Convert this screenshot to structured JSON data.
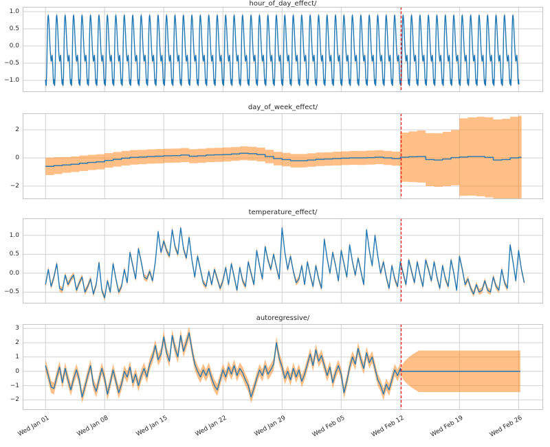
{
  "figure": {
    "background": "#ffffff"
  },
  "colors": {
    "mean_line": "#1f77b4",
    "uncertainty_band": "#ff7f0e",
    "band_opacity": 0.5,
    "forecast_vline": "#ff0000",
    "grid": "#d0d0d0",
    "spine": "#c4c4c4",
    "text": "#262626"
  },
  "x_axis": {
    "domain_days": [
      -2.7,
      58.9
    ],
    "tick_days": [
      0,
      7,
      14,
      21,
      28,
      35,
      42,
      49,
      56
    ],
    "tick_labels": [
      "Wed Jan 01",
      "Wed Jan 08",
      "Wed Jan 15",
      "Wed Jan 22",
      "Wed Jan 29",
      "Wed Feb 05",
      "Wed Feb 12",
      "Wed Feb 19",
      "Wed Feb 26"
    ],
    "forecast_start_day": 42.1
  },
  "chart_data": [
    {
      "type": "line",
      "title": "hour_of_day_effect/",
      "ylim": [
        -1.34,
        1.14
      ],
      "yticks": [
        1.0,
        0.5,
        0.0,
        -0.5,
        -1.0
      ],
      "ytick_labels": [
        "1.0",
        "0.5",
        "0.0",
        "−0.5",
        "−1.0"
      ],
      "series": {
        "kind": "seasonal_daily",
        "points_per_day": 24,
        "start_day": 0,
        "end_day": 56.08,
        "profile": [
          -0.98,
          -1.12,
          -1.15,
          -0.92,
          -0.45,
          0.18,
          0.62,
          0.86,
          0.9,
          0.8,
          0.63,
          0.42,
          0.18,
          -0.05,
          -0.22,
          -0.35,
          -0.44,
          -0.42,
          -0.3,
          -0.27,
          -0.42,
          -0.68,
          -0.95,
          -1.1
        ],
        "band_halfwidth": 0.07
      }
    },
    {
      "type": "step",
      "title": "day_of_week_effect/",
      "ylim": [
        -2.93,
        3.17
      ],
      "yticks": [
        2,
        0,
        -2
      ],
      "ytick_labels": [
        "2",
        "0",
        "−2"
      ],
      "series": {
        "kind": "daily_step",
        "start_day": 0,
        "end_day": 56.35,
        "values": [
          -0.6,
          -0.55,
          -0.5,
          -0.45,
          -0.38,
          -0.32,
          -0.28,
          -0.18,
          -0.1,
          -0.02,
          0.04,
          0.06,
          0.1,
          0.12,
          0.15,
          0.16,
          0.2,
          0.12,
          0.15,
          0.2,
          0.22,
          0.24,
          0.28,
          0.33,
          0.3,
          0.24,
          0.1,
          -0.05,
          -0.12,
          -0.2,
          -0.2,
          -0.15,
          -0.1,
          -0.08,
          -0.05,
          -0.02,
          0.0,
          0.0,
          0.02,
          0.05,
          0.0,
          -0.05,
          0.05,
          0.08,
          0.1,
          -0.12,
          -0.15,
          -0.08,
          0.02,
          0.06,
          0.1,
          0.1,
          0.04,
          -0.15,
          -0.12,
          0.0,
          0.04
        ],
        "band_halfwidths": [
          0.62,
          0.6,
          0.56,
          0.55,
          0.55,
          0.54,
          0.54,
          0.52,
          0.52,
          0.52,
          0.52,
          0.51,
          0.51,
          0.51,
          0.5,
          0.5,
          0.5,
          0.5,
          0.5,
          0.5,
          0.5,
          0.5,
          0.49,
          0.49,
          0.49,
          0.49,
          0.48,
          0.48,
          0.48,
          0.48,
          0.48,
          0.48,
          0.48,
          0.48,
          0.49,
          0.49,
          0.49,
          0.5,
          0.5,
          0.5,
          0.5,
          0.5,
          1.75,
          1.8,
          1.85,
          1.88,
          1.9,
          1.93,
          1.96,
          2.75,
          2.78,
          2.82,
          2.85,
          2.88,
          2.9,
          2.92,
          2.95
        ]
      }
    },
    {
      "type": "line",
      "title": "temperature_effect/",
      "ylim": [
        -0.8,
        1.45
      ],
      "yticks": [
        1.0,
        0.5,
        0.0,
        -0.5
      ],
      "ytick_labels": [
        "1.0",
        "0.5",
        "0.0",
        "−0.5"
      ],
      "series": {
        "kind": "sampled",
        "points_per_day": 3,
        "start_day": 0,
        "band_halfwidth": 0.08,
        "values": [
          -0.3,
          0.1,
          -0.35,
          -0.1,
          0.25,
          -0.4,
          -0.45,
          -0.05,
          -0.3,
          -0.15,
          -0.05,
          -0.45,
          -0.25,
          -0.1,
          -0.5,
          -0.35,
          -0.15,
          -0.55,
          -0.3,
          0.28,
          -0.45,
          -0.65,
          -0.2,
          -0.5,
          0.25,
          -0.15,
          -0.5,
          -0.35,
          0.1,
          -0.25,
          0.55,
          0.2,
          -0.15,
          0.65,
          0.3,
          -0.1,
          -0.15,
          0.05,
          -0.2,
          0.3,
          1.1,
          0.55,
          0.85,
          0.6,
          0.45,
          1.15,
          0.7,
          0.5,
          1.2,
          0.65,
          0.4,
          0.95,
          0.35,
          -0.1,
          0.45,
          0.1,
          -0.25,
          -0.35,
          0.05,
          -0.3,
          0.1,
          -0.15,
          -0.4,
          -0.2,
          0.15,
          -0.3,
          0.25,
          -0.1,
          -0.45,
          0.15,
          -0.2,
          -0.35,
          0.3,
          0.0,
          -0.3,
          0.6,
          0.2,
          -0.15,
          0.7,
          0.35,
          0.1,
          0.5,
          0.15,
          -0.15,
          1.2,
          0.55,
          0.1,
          0.45,
          0.05,
          -0.25,
          -0.15,
          0.2,
          -0.3,
          0.3,
          -0.05,
          -0.35,
          0.2,
          -0.15,
          -0.4,
          0.9,
          0.4,
          0.0,
          0.55,
          0.2,
          -0.2,
          0.6,
          0.25,
          -0.1,
          0.75,
          0.3,
          -0.05,
          0.4,
          0.05,
          -0.3,
          1.15,
          0.6,
          0.2,
          1.0,
          0.45,
          0.0,
          0.3,
          -0.1,
          -0.4,
          0.2,
          -0.15,
          -0.35,
          0.3,
          0.0,
          -0.3,
          0.35,
          0.05,
          -0.25,
          0.3,
          -0.05,
          -0.35,
          0.35,
          0.1,
          -0.2,
          0.3,
          -0.1,
          -0.4,
          0.2,
          -0.15,
          -0.35,
          0.35,
          0.0,
          -0.45,
          0.45,
          0.1,
          -0.3,
          -0.15,
          -0.4,
          -0.55,
          -0.3,
          -0.5,
          -0.45,
          -0.2,
          -0.45,
          -0.5,
          -0.1,
          -0.35,
          -0.45,
          0.1,
          -0.25,
          -0.4,
          0.75,
          0.3,
          -0.2,
          0.6,
          0.1,
          -0.25
        ]
      }
    },
    {
      "type": "line",
      "title": "autoregressive/",
      "ylim": [
        -2.7,
        3.3
      ],
      "yticks": [
        3,
        2,
        1,
        0,
        -1,
        -2
      ],
      "ytick_labels": [
        "3",
        "2",
        "1",
        "0",
        "−1",
        "−2"
      ],
      "series": {
        "kind": "sampled",
        "points_per_day": 3,
        "start_day": 0,
        "band_halfwidth": 0.42,
        "values": [
          0.4,
          -0.3,
          -1.1,
          -1.2,
          -0.4,
          0.3,
          -0.8,
          0.2,
          -0.6,
          -1.3,
          -0.5,
          0.1,
          -0.6,
          -1.8,
          -1.1,
          -0.3,
          0.4,
          -0.9,
          -1.4,
          -0.6,
          0.2,
          -0.5,
          -1.6,
          -0.8,
          0.1,
          -0.7,
          -1.5,
          -0.9,
          0.0,
          -0.4,
          0.3,
          -0.8,
          -0.2,
          -1.0,
          -0.3,
          0.2,
          -0.4,
          0.5,
          1.0,
          1.8,
          0.8,
          1.2,
          2.4,
          1.3,
          0.7,
          2.5,
          1.6,
          1.0,
          2.5,
          1.4,
          2.0,
          2.7,
          1.5,
          0.5,
          0.0,
          -0.4,
          0.1,
          -0.3,
          0.2,
          -0.5,
          -1.0,
          -1.3,
          -0.6,
          0.1,
          -0.4,
          0.3,
          -0.2,
          0.4,
          -0.3,
          0.2,
          -0.1,
          -0.6,
          -1.0,
          -1.8,
          -1.2,
          -0.5,
          0.1,
          -0.3,
          0.4,
          -0.2,
          0.1,
          0.5,
          2.0,
          0.9,
          0.3,
          -0.5,
          0.0,
          -0.6,
          0.2,
          -0.4,
          0.1,
          -0.7,
          -0.2,
          0.5,
          1.2,
          0.4,
          1.5,
          0.7,
          1.1,
          0.4,
          -0.3,
          0.3,
          -0.8,
          -0.1,
          0.4,
          -0.2,
          -1.5,
          -0.7,
          0.3,
          1.0,
          0.5,
          1.6,
          0.8,
          0.2,
          1.3,
          0.6,
          1.0,
          0.2,
          -0.6,
          -1.0,
          -1.6,
          -0.9,
          -1.3,
          -0.6,
          0.1,
          -0.3,
          0.2
        ],
        "forecast": {
          "start_day": 42,
          "end_day": 56.33,
          "mean": 0.0,
          "max_halfwidth": 1.45,
          "ramp_days": 2.2
        }
      }
    }
  ]
}
